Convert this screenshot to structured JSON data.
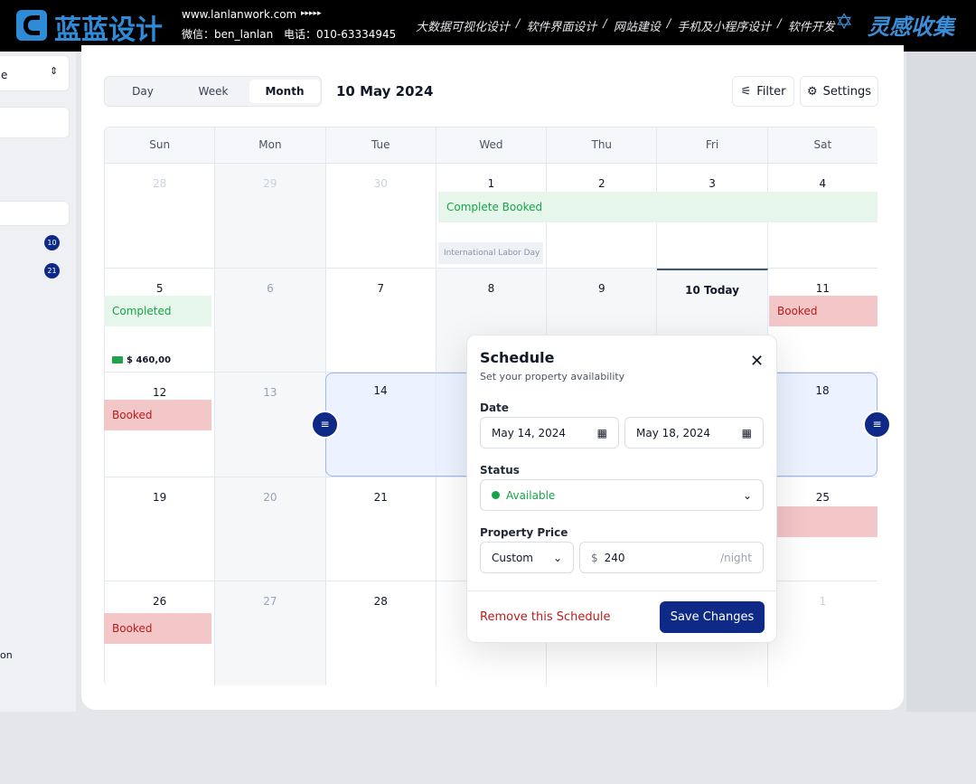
{
  "banner": {
    "logo": "蓝蓝设计",
    "url": "www.lanlanwork.com",
    "arrows": "▸▸▸▸▸",
    "wechat": "微信：ben_lanlan",
    "phone": "电话：010-63334945",
    "services": [
      "大数据可视化设计",
      "软件界面设计",
      "网站建设",
      "手机及小程序设计",
      "软件开发"
    ],
    "separator": "/",
    "brand": "灵感收集"
  },
  "sidebar": {
    "select_fragment": "e",
    "badges": [
      "10",
      "21"
    ],
    "footer_fragment": "on"
  },
  "toolbar": {
    "views": [
      "Day",
      "Week",
      "Month"
    ],
    "date": "10 May 2024",
    "filter": "Filter",
    "settings": "Settings"
  },
  "calendar": {
    "weekdays": [
      "Sun",
      "Mon",
      "Tue",
      "Wed",
      "Thu",
      "Fri",
      "Sat"
    ],
    "weeks": [
      [
        "28",
        "29",
        "30",
        "1",
        "2",
        "3",
        "4"
      ],
      [
        "5",
        "6",
        "7",
        "8",
        "9",
        "10 Today",
        "11"
      ],
      [
        "12",
        "13",
        "14",
        null,
        null,
        null,
        "18"
      ],
      [
        "19",
        "20",
        "21",
        null,
        null,
        null,
        "25"
      ],
      [
        "26",
        "27",
        "28",
        null,
        null,
        null,
        "1"
      ]
    ],
    "events": {
      "complete_booked": "Complete Booked",
      "holiday": "International Labor Day",
      "completed": "Completed",
      "amount": "$ 460,00",
      "booked": "Booked"
    }
  },
  "dialog": {
    "title": "Schedule",
    "subtitle": "Set your property availability",
    "date_label": "Date",
    "start_date": "May 14, 2024",
    "end_date": "May 18, 2024",
    "status_label": "Status",
    "status": "Available",
    "price_label": "Property Price",
    "price_mode": "Custom",
    "currency": "$",
    "price": "240",
    "unit": "/night",
    "remove": "Remove this Schedule",
    "save": "Save Changes"
  }
}
